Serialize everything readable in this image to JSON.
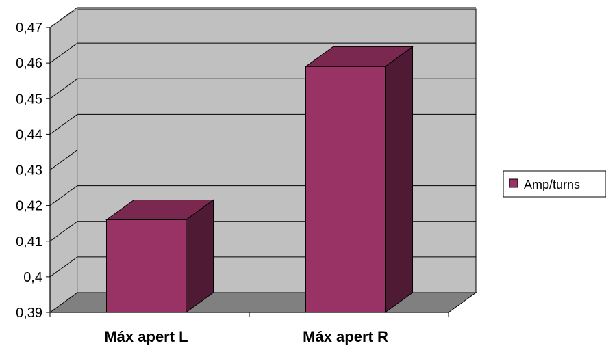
{
  "chart_data": {
    "type": "bar",
    "three_d": true,
    "categories": [
      "Máx apert L",
      "Máx apert R"
    ],
    "series": [
      {
        "name": "Amp/turns",
        "values": [
          0.416,
          0.459
        ]
      }
    ],
    "ylim": [
      0.39,
      0.47
    ],
    "yticks": [
      "0,39",
      "0,4",
      "0,41",
      "0,42",
      "0,43",
      "0,44",
      "0,45",
      "0,46",
      "0,47"
    ],
    "grid": true,
    "legend": "right",
    "colors": {
      "bar_front": "#993366",
      "bar_top": "#7a2850",
      "bar_side": "#4f1a33",
      "wall": "#c0c0c0",
      "floor": "#808080"
    }
  }
}
